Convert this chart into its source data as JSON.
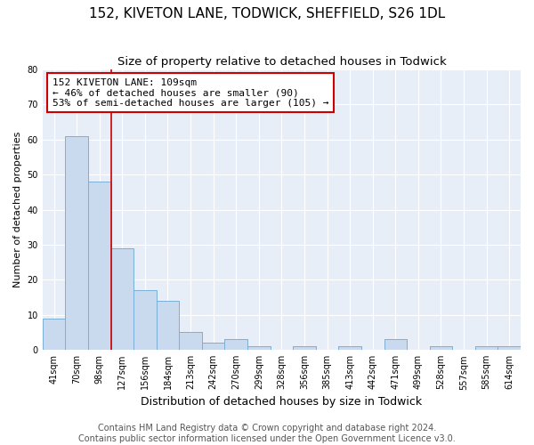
{
  "title": "152, KIVETON LANE, TODWICK, SHEFFIELD, S26 1DL",
  "subtitle": "Size of property relative to detached houses in Todwick",
  "xlabel": "Distribution of detached houses by size in Todwick",
  "ylabel": "Number of detached properties",
  "bar_labels": [
    "41sqm",
    "70sqm",
    "98sqm",
    "127sqm",
    "156sqm",
    "184sqm",
    "213sqm",
    "242sqm",
    "270sqm",
    "299sqm",
    "328sqm",
    "356sqm",
    "385sqm",
    "413sqm",
    "442sqm",
    "471sqm",
    "499sqm",
    "528sqm",
    "557sqm",
    "585sqm",
    "614sqm"
  ],
  "bar_values": [
    9,
    61,
    48,
    29,
    17,
    14,
    5,
    2,
    3,
    1,
    0,
    1,
    0,
    1,
    0,
    3,
    0,
    1,
    0,
    1,
    1
  ],
  "bar_color": "#c9d9ee",
  "bar_edge_color": "#7aafd4",
  "ylim": [
    0,
    80
  ],
  "yticks": [
    0,
    10,
    20,
    30,
    40,
    50,
    60,
    70,
    80
  ],
  "red_line_x": 2.5,
  "annotation_text": "152 KIVETON LANE: 109sqm\n← 46% of detached houses are smaller (90)\n53% of semi-detached houses are larger (105) →",
  "annotation_box_color": "#ffffff",
  "annotation_box_edge": "#cc0000",
  "footer_line1": "Contains HM Land Registry data © Crown copyright and database right 2024.",
  "footer_line2": "Contains public sector information licensed under the Open Government Licence v3.0.",
  "plot_bg_color": "#e8eef7",
  "fig_bg_color": "#ffffff",
  "grid_color": "#ffffff",
  "title_fontsize": 11,
  "subtitle_fontsize": 9.5,
  "xlabel_fontsize": 9,
  "ylabel_fontsize": 8,
  "tick_fontsize": 7,
  "annotation_fontsize": 8,
  "footer_fontsize": 7
}
